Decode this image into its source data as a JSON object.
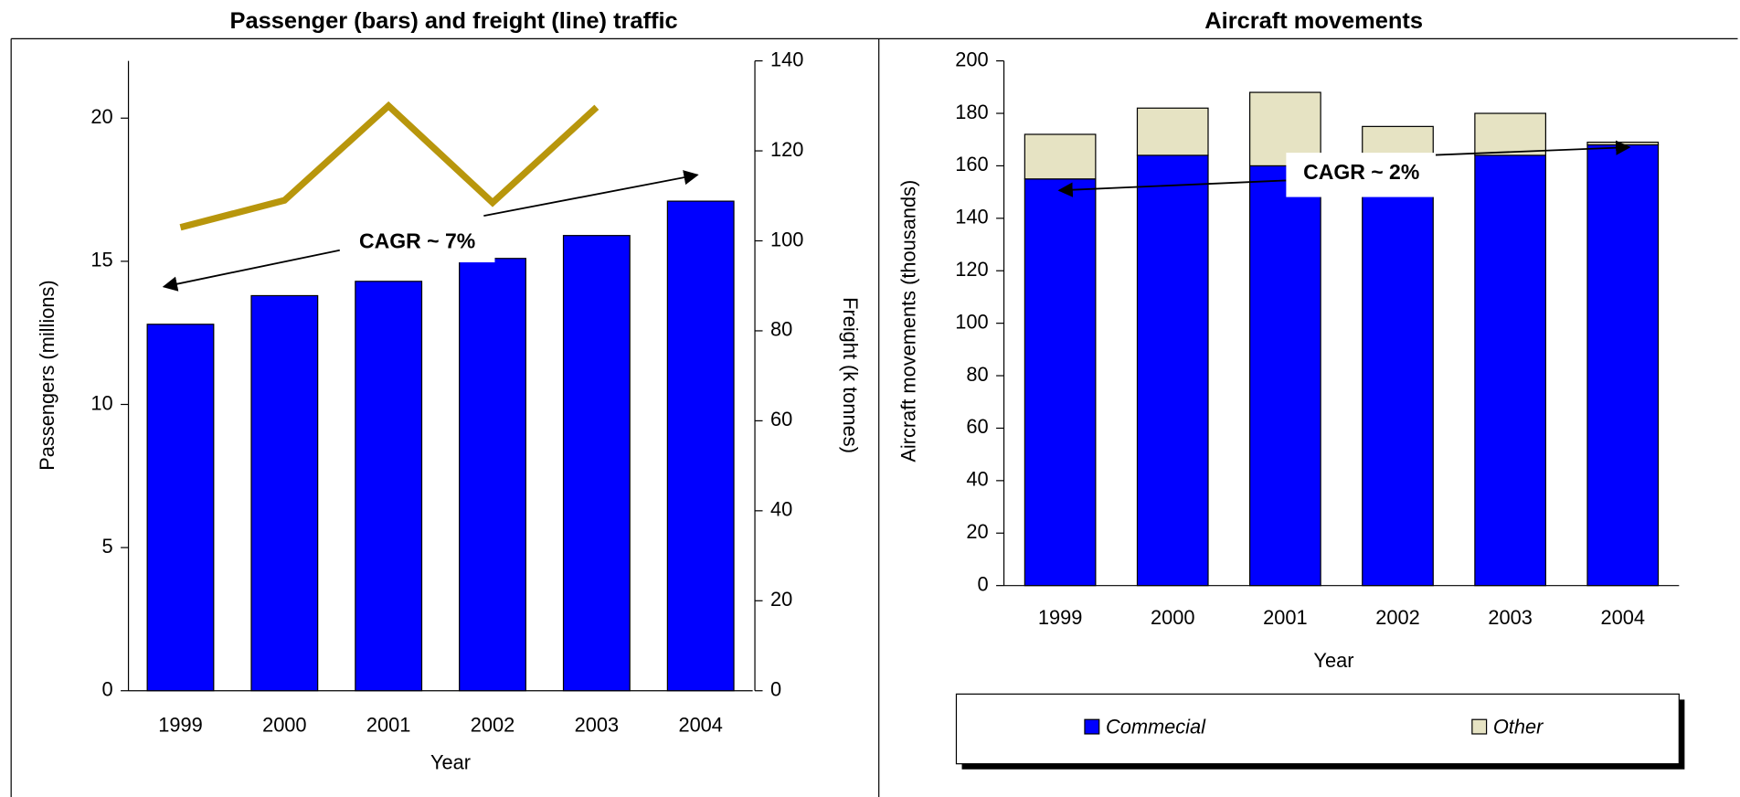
{
  "chart_data": [
    {
      "type": "bar_line",
      "title": "Passenger (bars) and freight (line) traffic",
      "xlabel": "Year",
      "ylabel": "Passengers (millions)",
      "y2label": "Freight (k tonnes)",
      "categories": [
        "1999",
        "2000",
        "2001",
        "2002",
        "2003",
        "2004"
      ],
      "series": [
        {
          "name": "Passengers",
          "color": "#0000ff",
          "values": [
            12.8,
            13.8,
            14.3,
            15.1,
            15.9,
            17.1
          ]
        },
        {
          "name": "Freight",
          "color": "#b8960c",
          "axis": "y2",
          "values": [
            103,
            109,
            130,
            108.5,
            129.7,
            null
          ]
        }
      ],
      "ylim": [
        0,
        22
      ],
      "yticks": [
        0,
        5,
        10,
        15,
        20
      ],
      "y2lim": [
        0,
        140
      ],
      "y2ticks": [
        0,
        20,
        40,
        60,
        80,
        100,
        120,
        140
      ],
      "annotation": "CAGR ~ 7%"
    },
    {
      "type": "stacked_bar",
      "title": "Aircraft movements",
      "xlabel": "Year",
      "ylabel": "Aircraft movements (thousands)",
      "categories": [
        "1999",
        "2000",
        "2001",
        "2002",
        "2003",
        "2004"
      ],
      "series": [
        {
          "name": "Commecial",
          "color": "#0000ff",
          "values": [
            155,
            164,
            160,
            158,
            164,
            168
          ]
        },
        {
          "name": "Other",
          "color": "#e6e3c3",
          "values": [
            17,
            18,
            28,
            17,
            16,
            1
          ]
        }
      ],
      "ylim": [
        0,
        200
      ],
      "yticks": [
        0,
        20,
        40,
        60,
        80,
        100,
        120,
        140,
        160,
        180,
        200
      ],
      "annotation": "CAGR ~ 2%"
    }
  ]
}
